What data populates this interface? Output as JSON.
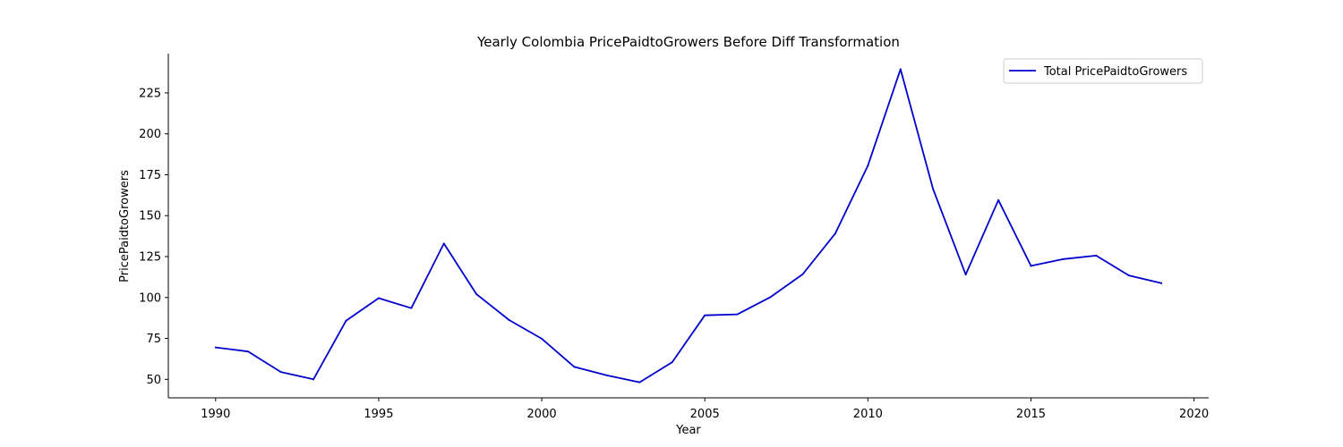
{
  "chart_data": {
    "type": "line",
    "title": "Yearly Colombia PricePaidtoGrowers Before Diff Transformation",
    "xlabel": "Year",
    "ylabel": "PricePaidtoGrowers",
    "x": [
      1990,
      1991,
      1992,
      1993,
      1994,
      1995,
      1996,
      1997,
      1998,
      1999,
      2000,
      2001,
      2002,
      2003,
      2004,
      2005,
      2006,
      2007,
      2008,
      2009,
      2010,
      2011,
      2012,
      2013,
      2014,
      2015,
      2016,
      2017,
      2018,
      2019
    ],
    "series": [
      {
        "name": "Total PricePaidtoGrowers",
        "color": "#0000cc",
        "values": [
          69.5,
          67.0,
          54.5,
          50.0,
          85.8,
          99.6,
          93.5,
          133.0,
          102.0,
          86.2,
          74.8,
          57.6,
          52.4,
          48.2,
          60.5,
          89.1,
          89.7,
          100.1,
          114.2,
          139.1,
          180.5,
          239.5,
          166.2,
          114.0,
          159.5,
          119.3,
          123.5,
          125.6,
          113.5,
          108.7
        ]
      }
    ],
    "xlim": [
      1988.55,
      2020.45
    ],
    "ylim": [
      38.7,
      249.0
    ],
    "xticks": [
      1990,
      1995,
      2000,
      2005,
      2010,
      2015,
      2020
    ],
    "yticks": [
      50,
      75,
      100,
      125,
      150,
      175,
      200,
      225
    ],
    "legend_position": "upper-right",
    "grid": false
  }
}
